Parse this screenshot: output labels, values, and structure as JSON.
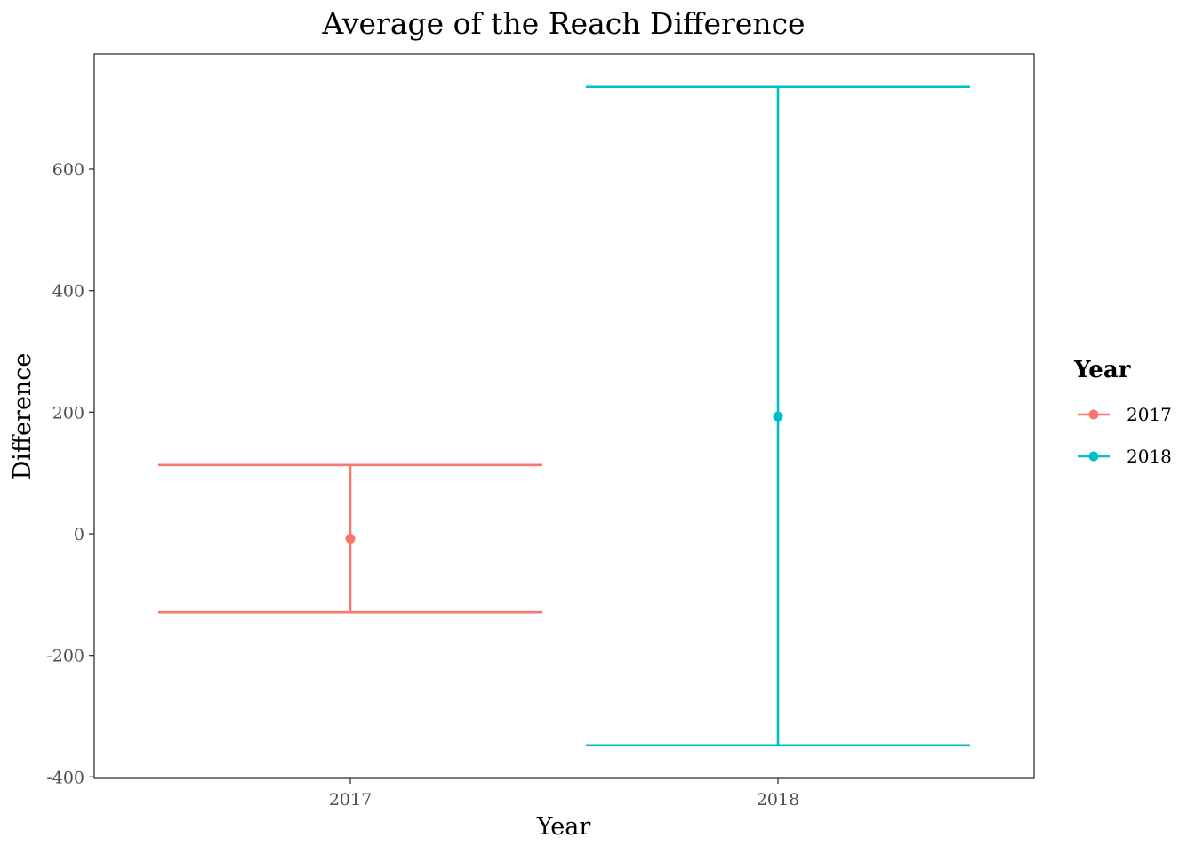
{
  "chart_data": {
    "type": "errorbar",
    "title": "Average of the Reach Difference",
    "xlabel": "Year",
    "ylabel": "Difference",
    "categories": [
      "2017",
      "2018"
    ],
    "series": [
      {
        "name": "2017",
        "mean": -8,
        "lower": -129,
        "upper": 113,
        "color": "#F8766D"
      },
      {
        "name": "2018",
        "mean": 193,
        "lower": -348,
        "upper": 735,
        "color": "#00BFC4"
      }
    ],
    "ylim": [
      -400,
      800
    ],
    "yticks": [
      "-400",
      "-200",
      "0",
      "200",
      "400",
      "600"
    ],
    "grid": false,
    "legend": {
      "title": "Year",
      "position": "right",
      "items": [
        "2017",
        "2018"
      ]
    }
  }
}
